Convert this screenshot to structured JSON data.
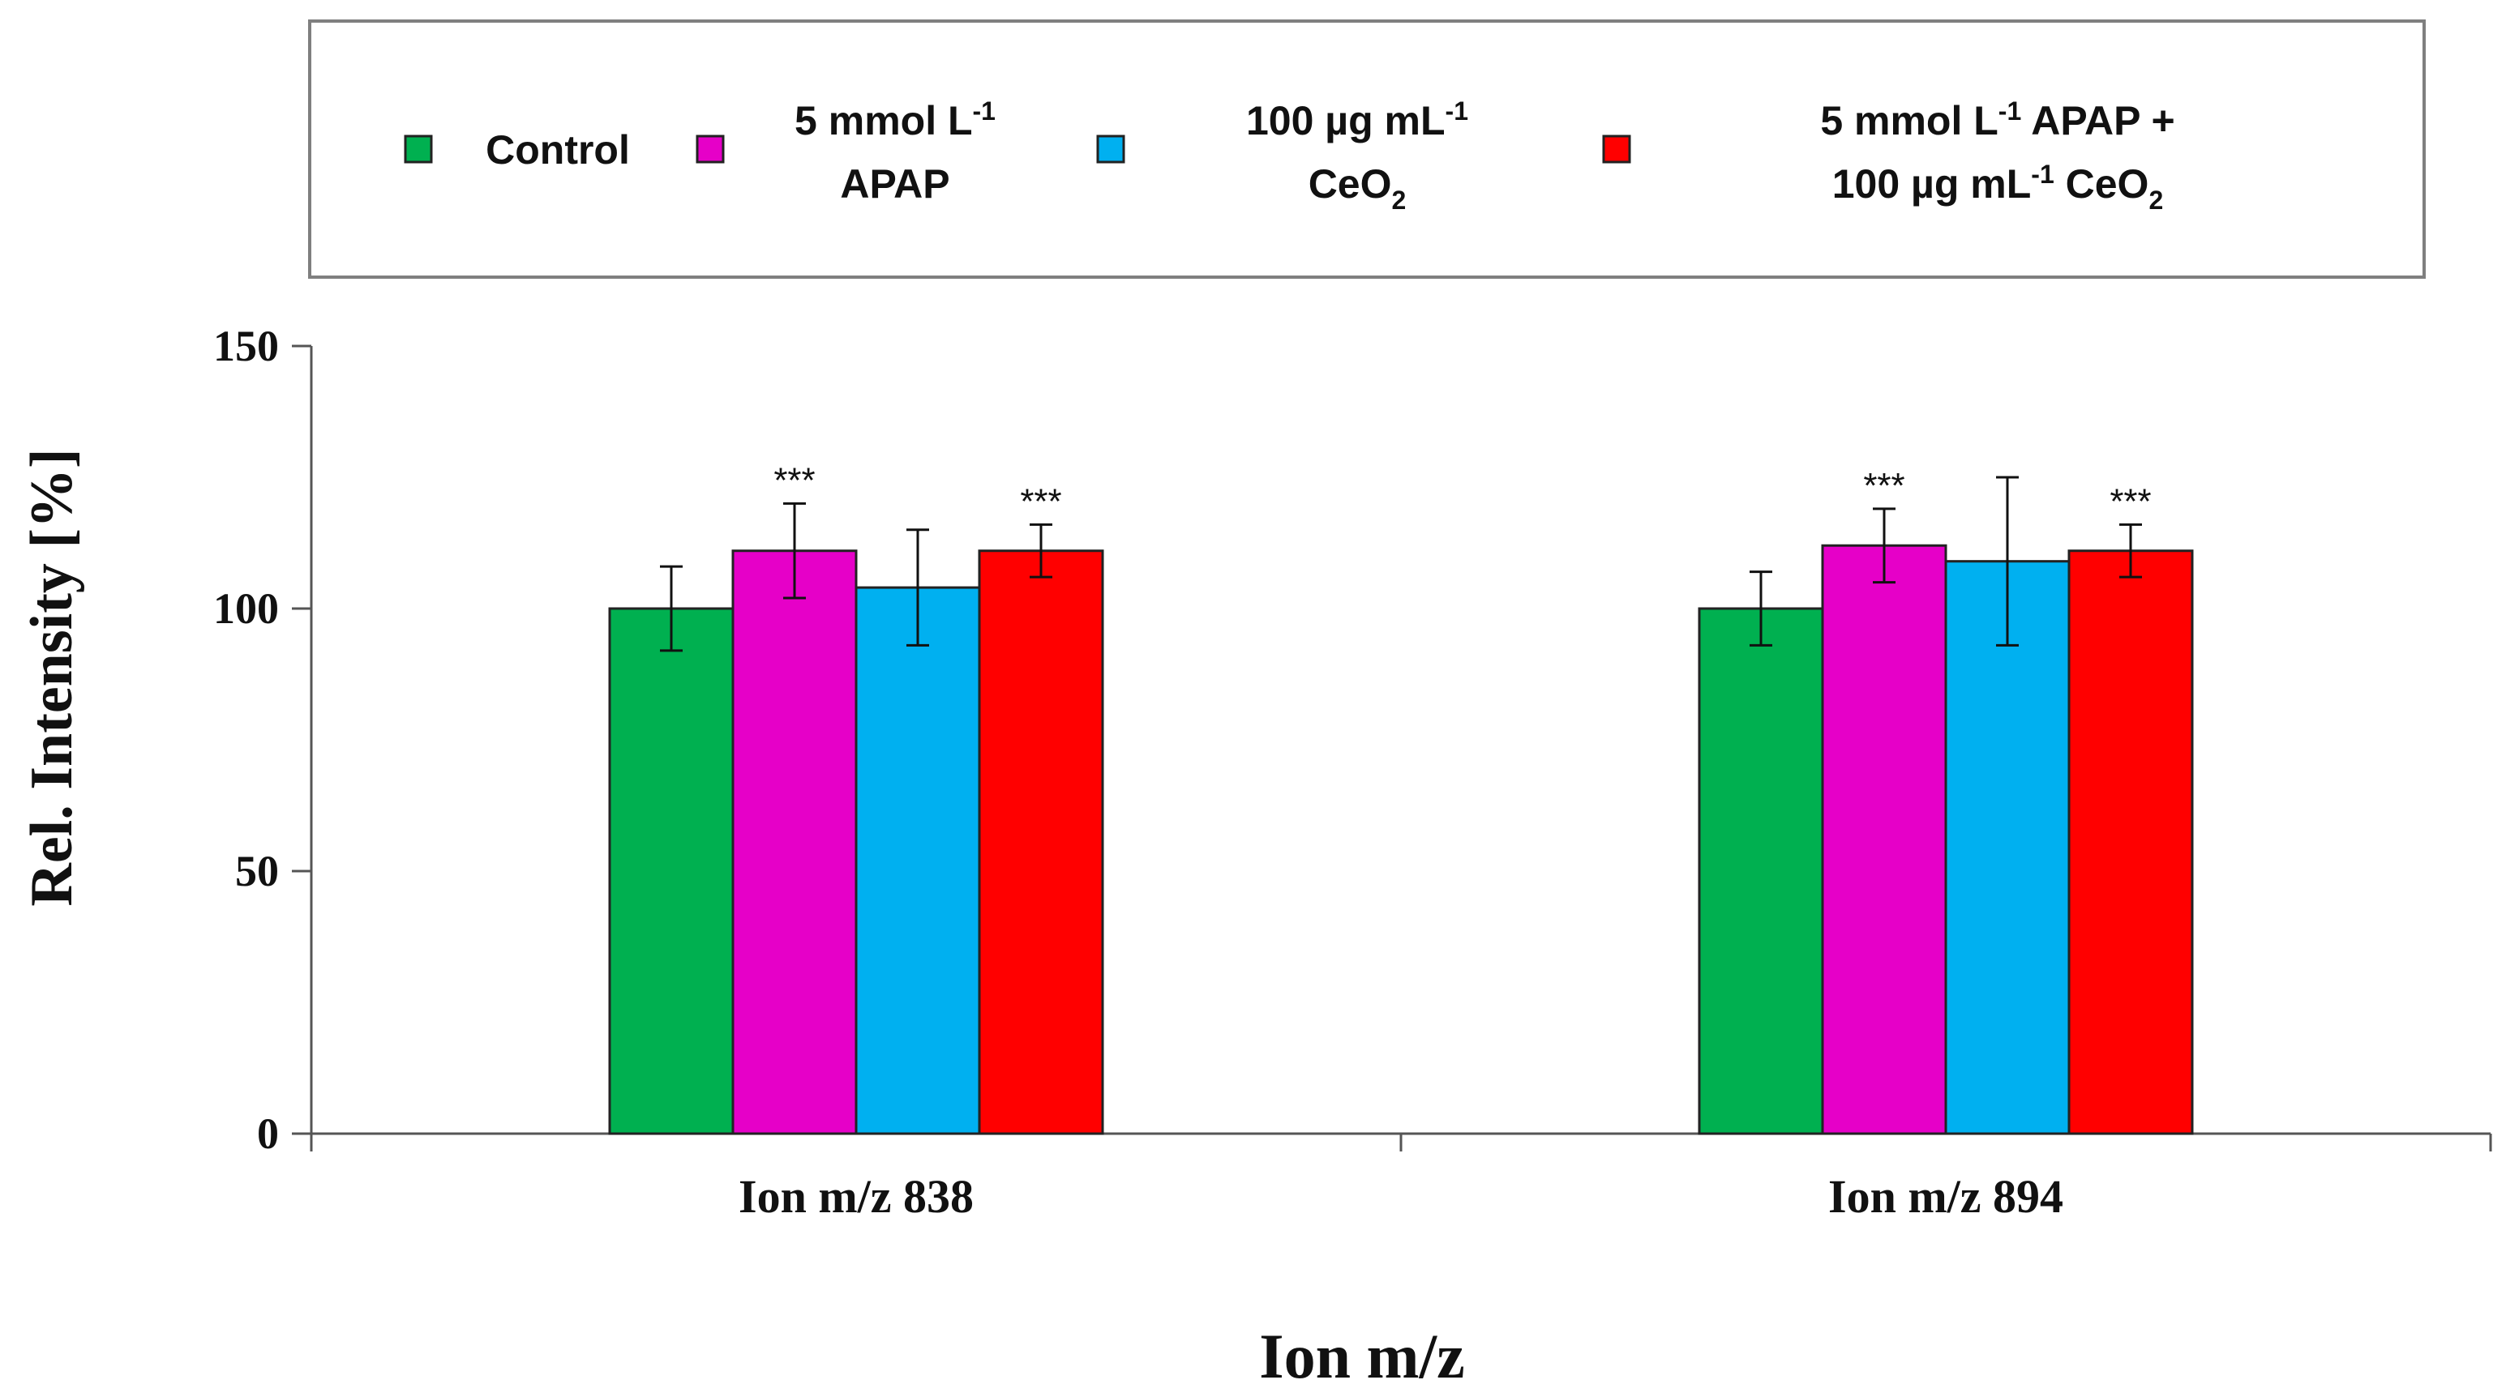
{
  "chart_data": {
    "type": "bar",
    "title": "",
    "xlabel": "Ion m/z",
    "ylabel": "Rel. Intensity [%]",
    "ylim": [
      0,
      150
    ],
    "yticks": [
      "0",
      "50",
      "100",
      "150"
    ],
    "grid": false,
    "legend_position": "top",
    "categories": [
      "Ion m/z 838",
      "Ion m/z 894"
    ],
    "series": [
      {
        "name": "Control",
        "legend_lines": [
          {
            "text": "Control"
          }
        ],
        "color": "#00b050",
        "values": [
          100,
          100
        ],
        "errors": [
          8,
          7
        ],
        "significance": [
          "",
          ""
        ]
      },
      {
        "name": "5 mmol L-1 APAP",
        "legend_lines": [
          {
            "text": "5 mmol L",
            "sup": "-1"
          },
          {
            "text": "APAP"
          }
        ],
        "color": "#e600c8",
        "values": [
          111,
          112
        ],
        "errors": [
          9,
          7
        ],
        "significance": [
          "***",
          "***"
        ]
      },
      {
        "name": "100 µg mL-1 CeO2",
        "legend_lines": [
          {
            "text": "100 µg mL",
            "sup": "-1"
          },
          {
            "text": "CeO",
            "sub": "2"
          }
        ],
        "color": "#00b0f0",
        "values": [
          104,
          109
        ],
        "errors": [
          11,
          16
        ],
        "significance": [
          "",
          ""
        ]
      },
      {
        "name": "5 mmol L-1 APAP + 100 µg mL-1 CeO2",
        "legend_lines": [
          {
            "text": "5 mmol L",
            "sup": "-1",
            "tail": " APAP +"
          },
          {
            "text": "100 µg mL",
            "sup": "-1",
            "tail": " CeO",
            "sub": "2"
          }
        ],
        "color": "#ff0000",
        "values": [
          111,
          111
        ],
        "errors": [
          5,
          5
        ],
        "significance": [
          "***",
          "***"
        ]
      }
    ]
  }
}
